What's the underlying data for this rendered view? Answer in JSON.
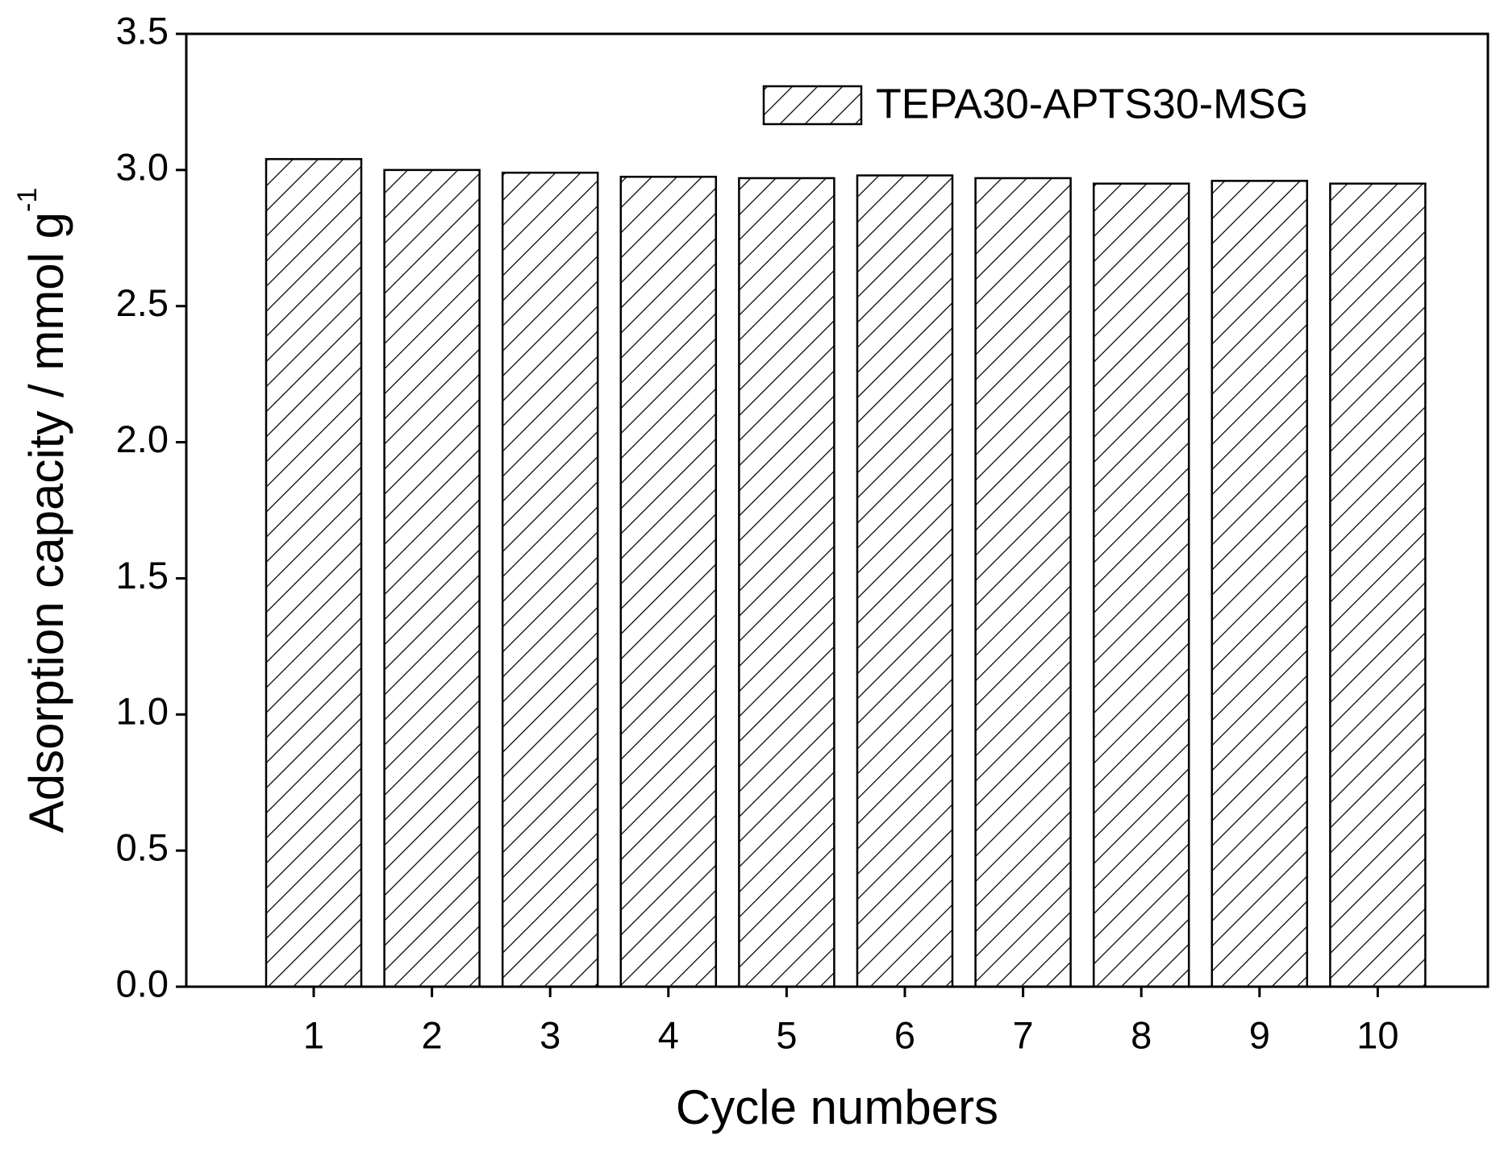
{
  "chart_data": {
    "type": "bar",
    "x_label": "Cycle numbers",
    "y_label": "Adsorption capacity / mmol g",
    "y_label_superscript": "-1",
    "categories": [
      "1",
      "2",
      "3",
      "4",
      "5",
      "6",
      "7",
      "8",
      "9",
      "10"
    ],
    "series": [
      {
        "name": "TEPA30-APTS30-MSG",
        "color": "#000000",
        "pattern": "hatch",
        "values": [
          3.04,
          3.0,
          2.99,
          2.975,
          2.97,
          2.98,
          2.97,
          2.95,
          2.96,
          2.95
        ]
      }
    ],
    "ylim": [
      0,
      3.5
    ],
    "yticks": [
      {
        "value": 0,
        "label": "0.0"
      },
      0.5,
      {
        "value": 1,
        "label": "1.0"
      },
      1.5,
      {
        "value": 2,
        "label": "2.0"
      },
      2.5,
      {
        "value": 3,
        "label": "3.0"
      },
      3.5
    ],
    "legend": "upper right",
    "grid": false
  }
}
